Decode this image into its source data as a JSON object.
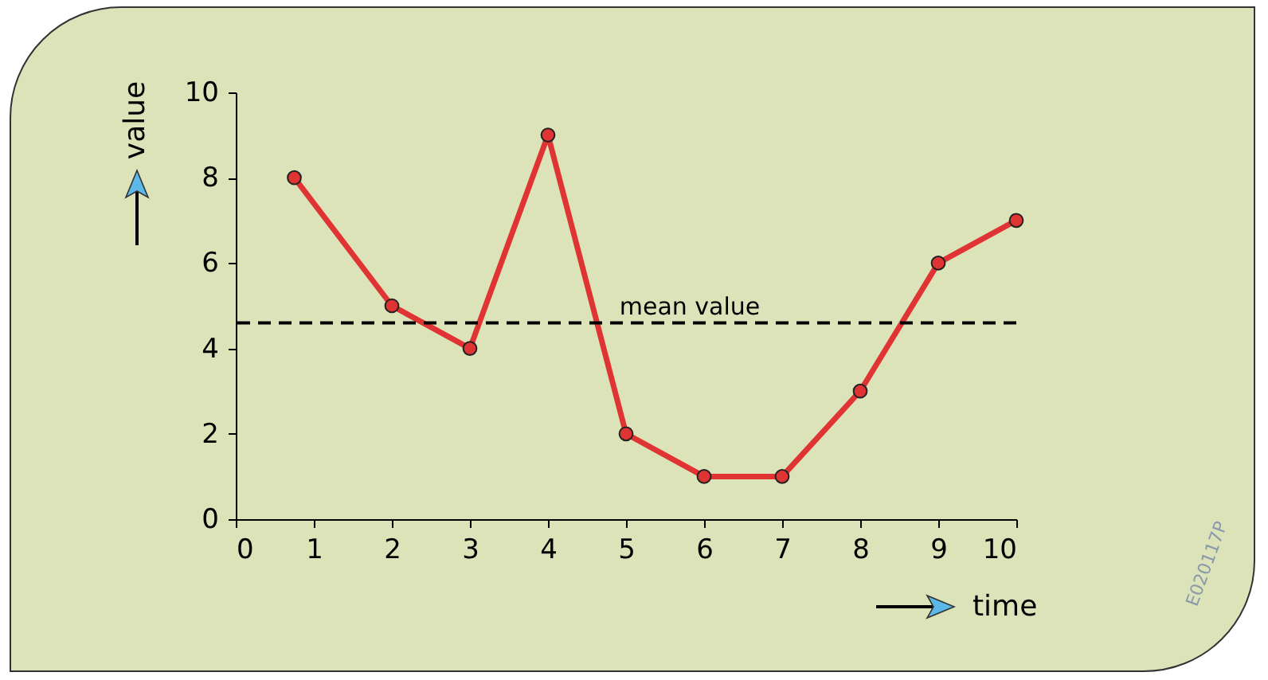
{
  "chart_data": {
    "type": "line",
    "xlabel": "time",
    "ylabel": "value",
    "x": [
      0.75,
      2,
      3,
      4,
      5,
      6,
      7,
      8,
      9,
      10
    ],
    "series": [
      {
        "color": "#e03434",
        "values": [
          8,
          5,
          4,
          9,
          2,
          1,
          1,
          3,
          6,
          7
        ]
      }
    ],
    "xlim": [
      0,
      10
    ],
    "xticks": [
      0,
      1,
      2,
      3,
      4,
      5,
      6,
      7,
      8,
      9,
      10
    ],
    "ylim": [
      0,
      10
    ],
    "yticks": [
      0,
      2,
      4,
      6,
      8,
      10
    ],
    "ref_lines": [
      {
        "axis": "y",
        "value": 4.6,
        "label": "mean value",
        "color": "#000000",
        "line_style": "dashed"
      }
    ],
    "annotations": [
      "E020117P"
    ],
    "marker": "circle",
    "line_style": "solid",
    "grid": false
  }
}
